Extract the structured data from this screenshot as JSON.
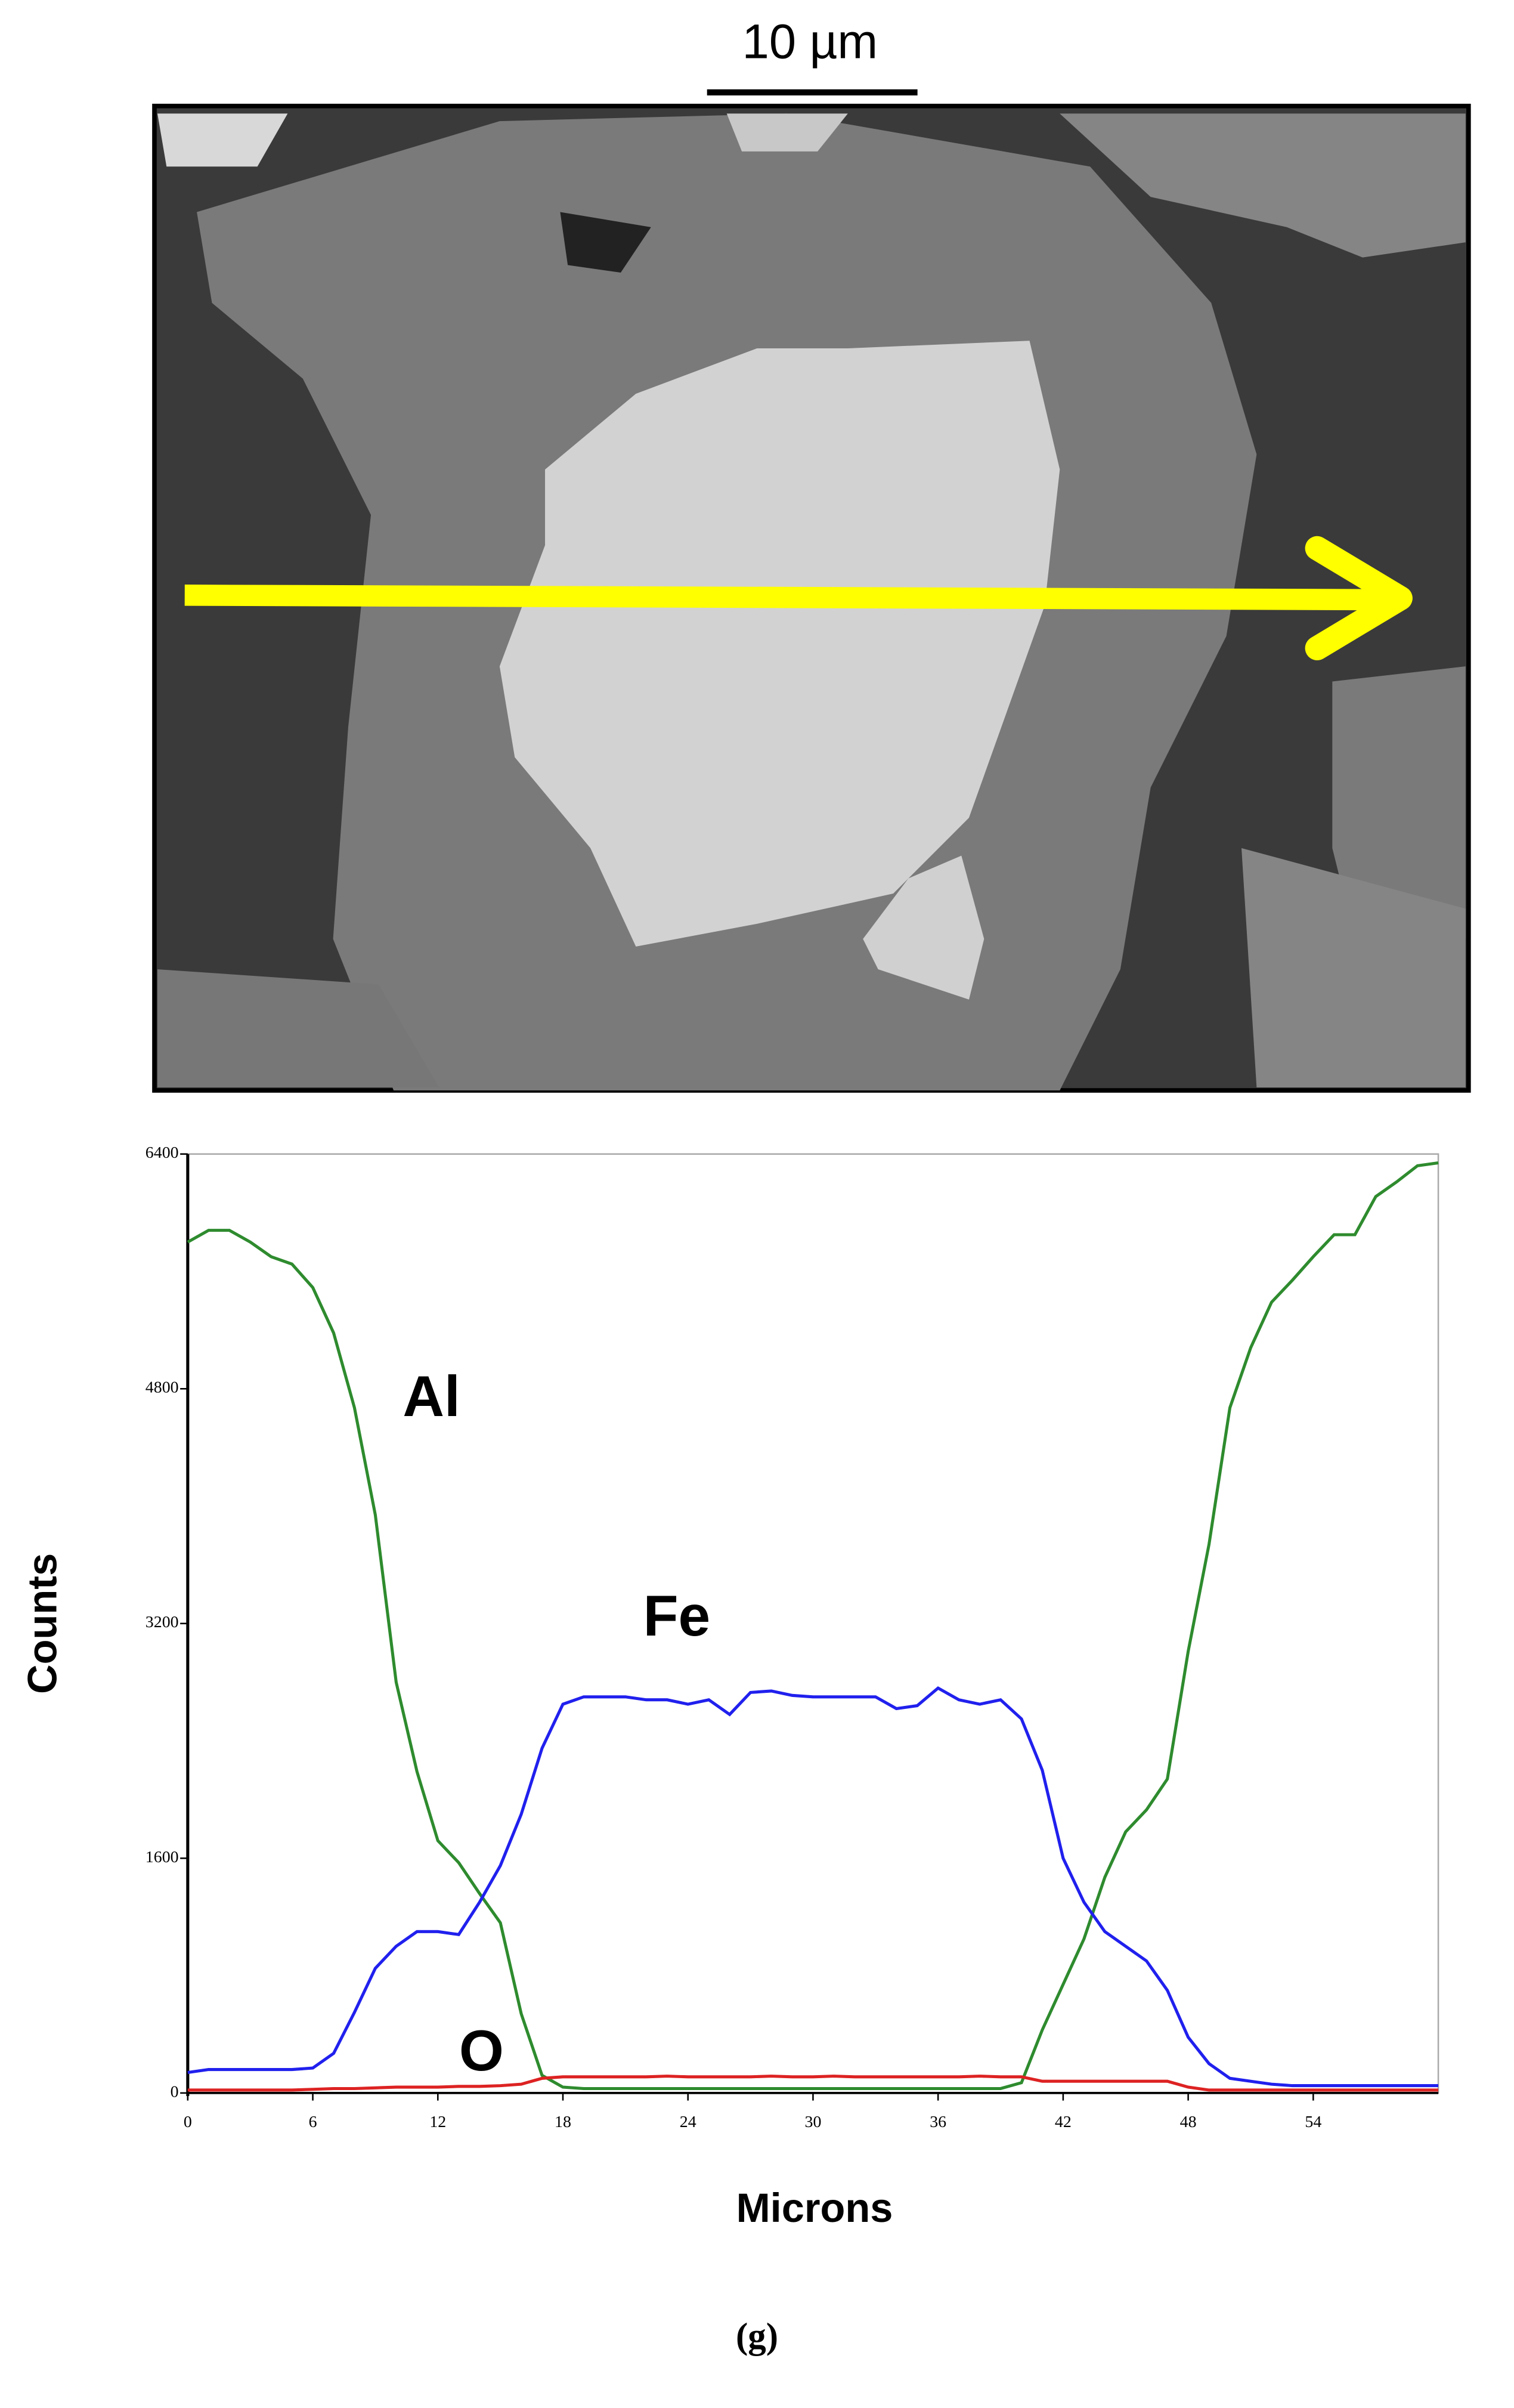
{
  "figure": {
    "scale_bar_label": "10 µm",
    "panel_label": "(g)"
  },
  "chart_data": {
    "type": "line",
    "x": [
      0,
      1,
      2,
      3,
      4,
      5,
      6,
      7,
      8,
      9,
      10,
      11,
      12,
      13,
      14,
      15,
      16,
      17,
      18,
      19,
      20,
      21,
      22,
      23,
      24,
      25,
      26,
      27,
      28,
      29,
      30,
      31,
      32,
      33,
      34,
      35,
      36,
      37,
      38,
      39,
      40,
      41,
      42,
      43,
      44,
      45,
      46,
      47,
      48,
      49,
      50,
      51,
      52,
      53,
      54,
      55,
      56,
      57,
      58,
      59,
      60
    ],
    "series": [
      {
        "name": "Al",
        "color": "#2e8b2e",
        "values": [
          5800,
          5880,
          5880,
          5800,
          5700,
          5650,
          5490,
          5180,
          4670,
          3940,
          2800,
          2190,
          1720,
          1570,
          1360,
          1160,
          540,
          120,
          40,
          30,
          30,
          30,
          30,
          30,
          30,
          30,
          30,
          30,
          30,
          30,
          30,
          30,
          30,
          30,
          30,
          30,
          30,
          30,
          30,
          30,
          70,
          430,
          740,
          1050,
          1470,
          1780,
          1930,
          2140,
          3010,
          3740,
          4670,
          5080,
          5390,
          5540,
          5700,
          5850,
          5850,
          6110,
          6210,
          6320,
          6340
        ]
      },
      {
        "name": "Fe",
        "color": "#2020ee",
        "values": [
          140,
          160,
          160,
          160,
          160,
          160,
          170,
          270,
          550,
          850,
          1000,
          1100,
          1100,
          1080,
          1300,
          1550,
          1900,
          2350,
          2650,
          2700,
          2700,
          2700,
          2680,
          2680,
          2650,
          2680,
          2580,
          2730,
          2740,
          2710,
          2700,
          2700,
          2700,
          2700,
          2620,
          2640,
          2760,
          2680,
          2650,
          2680,
          2550,
          2200,
          1600,
          1300,
          1100,
          1000,
          900,
          700,
          380,
          200,
          100,
          80,
          60,
          50,
          50,
          50,
          50,
          50,
          50,
          50,
          50
        ]
      },
      {
        "name": "O",
        "color": "#dd2222",
        "values": [
          20,
          20,
          20,
          20,
          20,
          20,
          25,
          30,
          30,
          35,
          40,
          40,
          40,
          45,
          45,
          50,
          60,
          100,
          110,
          110,
          110,
          110,
          110,
          115,
          110,
          110,
          110,
          110,
          115,
          110,
          110,
          115,
          110,
          110,
          110,
          110,
          110,
          110,
          115,
          110,
          110,
          80,
          80,
          80,
          80,
          80,
          80,
          80,
          40,
          20,
          20,
          20,
          20,
          20,
          20,
          20,
          20,
          20,
          20,
          20,
          20
        ]
      }
    ],
    "xlabel": "Microns",
    "ylabel": "Counts",
    "xlim": [
      0,
      60
    ],
    "ylim": [
      0,
      6400
    ],
    "xticks": [
      0,
      6,
      12,
      18,
      24,
      30,
      36,
      42,
      48,
      54
    ],
    "yticks": [
      0,
      1600,
      3200,
      4800,
      6400
    ],
    "grid": false
  }
}
